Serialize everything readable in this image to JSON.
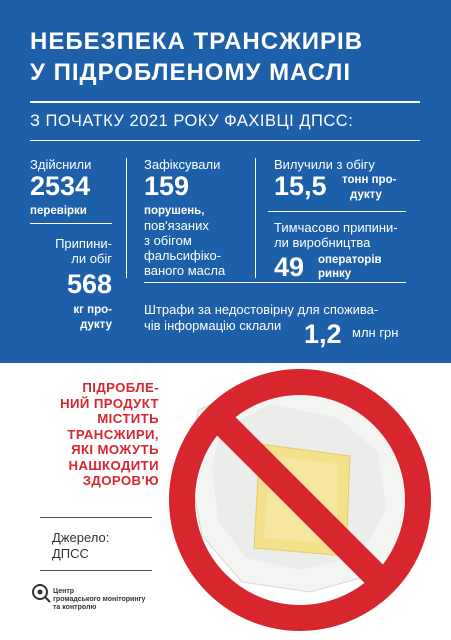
{
  "headline": {
    "line1": "НЕБЕЗПЕКА ТРАНСЖИРІВ",
    "line2": "У ПІДРОБЛЕНОМУ МАСЛІ"
  },
  "subtitle": "З ПОЧАТКУ 2021 РОКУ ФАХІВЦІ ДПСС:",
  "stats": {
    "inspections": {
      "label": "Здійснили",
      "value": "2534",
      "unit": "перевірки"
    },
    "stopped": {
      "label_l1": "Припини-",
      "label_l2": "ли обіг",
      "value": "568",
      "unit_l1": "кг про-",
      "unit_l2": "дукту"
    },
    "violations": {
      "label": "Зафіксували",
      "value": "159",
      "unit": "порушень,",
      "desc_l1": "пов'язаних",
      "desc_l2": "з обігом",
      "desc_l3": "фальсифіко-",
      "desc_l4": "ваного масла"
    },
    "withdrawn": {
      "label": "Вилучили з обігу",
      "value": "15,5",
      "unit_l1": "тонн про-",
      "unit_l2": "дукту"
    },
    "production": {
      "label_l1": "Тимчасово припини-",
      "label_l2": "ли виробництва",
      "value": "49",
      "unit_l1": "операторів",
      "unit_l2": "ринку"
    },
    "fines": {
      "text_l1": "Штрафи за недостовірну для спожива-",
      "text_l2": "чів інформацію склали",
      "value": "1,2",
      "unit": "млн грн"
    }
  },
  "warning": {
    "l1": "ПІДРОБЛЕ-",
    "l2": "НИЙ ПРОДУКТ",
    "l3": "МІСТИТЬ",
    "l4": "ТРАНСЖИРИ,",
    "l5": "ЯКІ МОЖУТЬ",
    "l6": "НАШКОДИТИ",
    "l7": "ЗДОРОВ'Ю"
  },
  "source": {
    "label": "Джерело:",
    "value": "ДПСС"
  },
  "logo": {
    "l1": "Центр",
    "l2": "громадського моніторингу",
    "l3": "та контролю"
  },
  "colors": {
    "blue": "#1e5fa9",
    "red": "#d7262e",
    "butter": "#f2e08a"
  }
}
